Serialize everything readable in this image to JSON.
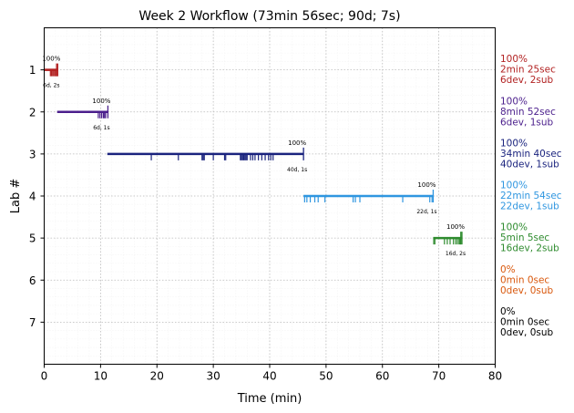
{
  "chart_data": {
    "type": "timeline",
    "title": "Week 2 Workflow (73min 56sec; 90d; 7s)",
    "xlabel": "Time (min)",
    "ylabel": "Lab #",
    "xlim": [
      0,
      80
    ],
    "ylim": [
      0,
      8
    ],
    "y_inverted": true,
    "x_ticks": [
      0,
      10,
      20,
      30,
      40,
      50,
      60,
      70,
      80
    ],
    "y_ticks": [
      1,
      2,
      3,
      4,
      5,
      6,
      7
    ],
    "grid": true,
    "labs": [
      {
        "lab": 1,
        "color": "#b22222",
        "start": 0.0,
        "end": 2.4,
        "pct_label": "100%",
        "count_label": "6d, 2s",
        "dev_ticks": [
          1.1,
          1.3,
          1.5,
          1.7,
          1.9,
          2.1
        ],
        "sub_ticks": [
          2.2,
          2.4
        ],
        "right_labels": [
          "100%",
          "2min 25sec",
          "6dev, 2sub"
        ]
      },
      {
        "lab": 2,
        "color": "#4b1f8c",
        "start": 2.3,
        "end": 11.3,
        "pct_label": "100%",
        "count_label": "6d, 1s",
        "dev_ticks": [
          9.6,
          9.9,
          10.2,
          10.5,
          10.7,
          10.9
        ],
        "sub_ticks": [
          11.3
        ],
        "right_labels": [
          "100%",
          "8min 52sec",
          "6dev, 1sub"
        ]
      },
      {
        "lab": 3,
        "color": "#1a237e",
        "start": 11.2,
        "end": 46.0,
        "pct_label": "100%",
        "count_label": "40d, 1s",
        "dev_ticks": [
          19.0,
          23.8,
          28.0,
          28.2,
          28.4,
          30.0,
          32.0,
          32.2,
          34.8,
          35.0,
          35.2,
          35.4,
          35.6,
          35.8,
          36.0,
          36.6,
          37.0,
          37.4,
          38.0,
          38.6,
          39.2,
          39.8,
          40.2,
          40.6
        ],
        "sub_ticks": [
          46.0
        ],
        "right_labels": [
          "100%",
          "34min 40sec",
          "40dev, 1sub"
        ]
      },
      {
        "lab": 4,
        "color": "#2f96e0",
        "start": 46.0,
        "end": 69.0,
        "pct_label": "100%",
        "count_label": "22d, 1s",
        "dev_ticks": [
          46.2,
          46.6,
          47.2,
          48.0,
          48.6,
          49.8,
          54.8,
          55.2,
          56.0,
          63.6,
          68.4,
          68.8
        ],
        "sub_ticks": [
          69.0
        ],
        "right_labels": [
          "100%",
          "22min 54sec",
          "22dev, 1sub"
        ]
      },
      {
        "lab": 5,
        "color": "#2e8b2e",
        "start": 69.0,
        "end": 74.1,
        "pct_label": "100%",
        "count_label": "16d, 2s",
        "dev_ticks": [
          69.1,
          69.3,
          71.0,
          71.5,
          72.0,
          72.6,
          73.0,
          73.3,
          73.6,
          73.8
        ],
        "sub_ticks": [
          73.9,
          74.1
        ],
        "right_labels": [
          "100%",
          "5min 5sec",
          "16dev, 2sub"
        ]
      },
      {
        "lab": 6,
        "color": "#d9580d",
        "start": null,
        "end": null,
        "pct_label": "",
        "count_label": "",
        "dev_ticks": [],
        "sub_ticks": [],
        "right_labels": [
          "0%",
          "0min 0sec",
          "0dev, 0sub"
        ]
      },
      {
        "lab": 7,
        "color": "#000000",
        "start": null,
        "end": null,
        "pct_label": "",
        "count_label": "",
        "dev_ticks": [],
        "sub_ticks": [],
        "right_labels": [
          "0%",
          "0min 0sec",
          "0dev, 0sub"
        ]
      }
    ]
  }
}
